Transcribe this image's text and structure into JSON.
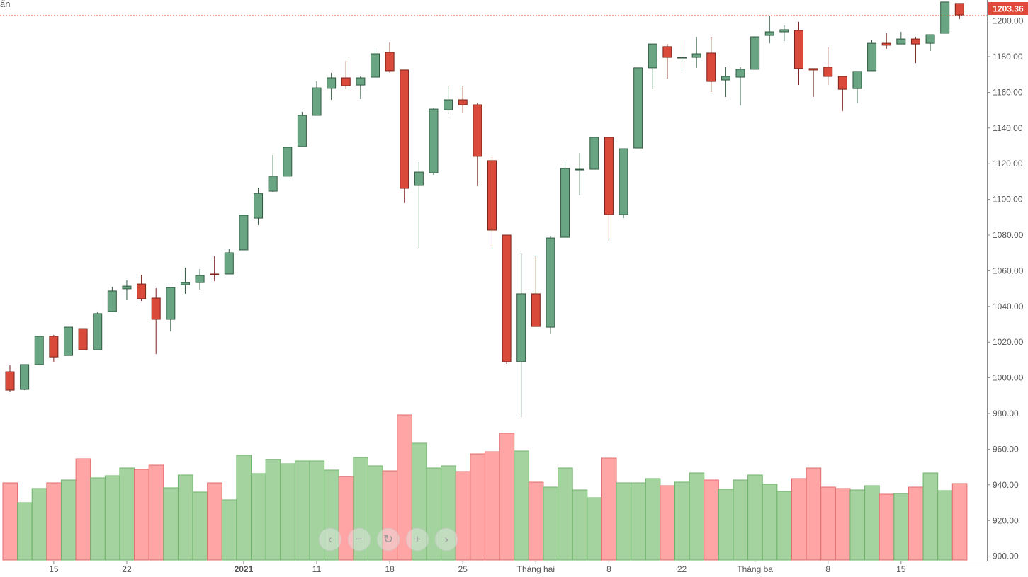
{
  "corner_label": "ẩn",
  "nav": {
    "prev": "‹",
    "zoom_out": "−",
    "reset": "↻",
    "zoom_in": "+",
    "next": "›"
  },
  "colors": {
    "up": "#6aa583",
    "up_border": "#2f5a40",
    "down": "#d94a3a",
    "down_border": "#7a2218",
    "vol_up": "#a5d3a0",
    "vol_up_border": "#6db36a",
    "vol_down": "#ffa5a5",
    "vol_down_border": "#e26e6e",
    "last_price": "#e0483a"
  },
  "chart_data": {
    "type": "candlestick",
    "ylim": [
      895,
      1212
    ],
    "y_ticks": [
      "900.00",
      "920.00",
      "940.00",
      "960.00",
      "980.00",
      "1000.00",
      "1020.00",
      "1040.00",
      "1060.00",
      "1080.00",
      "1100.00",
      "1120.00",
      "1140.00",
      "1160.00",
      "1180.00",
      "1200.00"
    ],
    "last_price": "1203.36",
    "x_ticks": [
      {
        "index": 3,
        "label": "15"
      },
      {
        "index": 8,
        "label": "22"
      },
      {
        "index": 16,
        "label": "2021",
        "bold": true
      },
      {
        "index": 21,
        "label": "11"
      },
      {
        "index": 26,
        "label": "18"
      },
      {
        "index": 31,
        "label": "25"
      },
      {
        "index": 36,
        "label": "Tháng hai"
      },
      {
        "index": 41,
        "label": "8"
      },
      {
        "index": 46,
        "label": "22"
      },
      {
        "index": 51,
        "label": "Tháng ba"
      },
      {
        "index": 56,
        "label": "8"
      },
      {
        "index": 61,
        "label": "15"
      }
    ],
    "candles": [
      [
        1003.4,
        1007.0,
        992.3,
        993.1
      ],
      [
        993.5,
        1007.4,
        993.1,
        1007.4
      ],
      [
        1007.4,
        1023.3,
        1007.4,
        1023.3
      ],
      [
        1023.3,
        1024.1,
        1009.0,
        1011.7
      ],
      [
        1012.5,
        1028.4,
        1012.5,
        1028.4
      ],
      [
        1027.6,
        1027.6,
        1015.7,
        1015.7
      ],
      [
        1015.7,
        1037.2,
        1015.7,
        1036.0
      ],
      [
        1037.2,
        1051.0,
        1037.2,
        1048.7
      ],
      [
        1049.9,
        1054.6,
        1043.5,
        1051.4
      ],
      [
        1052.6,
        1057.8,
        1043.1,
        1044.3
      ],
      [
        1044.7,
        1050.2,
        1013.3,
        1032.8
      ],
      [
        1032.8,
        1050.6,
        1026.0,
        1050.6
      ],
      [
        1052.2,
        1061.8,
        1047.1,
        1053.4
      ],
      [
        1053.4,
        1061.0,
        1049.5,
        1057.4
      ],
      [
        1058.2,
        1068.1,
        1054.2,
        1057.8
      ],
      [
        1058.2,
        1072.1,
        1058.2,
        1070.1
      ],
      [
        1071.7,
        1091.1,
        1071.7,
        1091.1
      ],
      [
        1089.5,
        1106.6,
        1085.6,
        1103.4
      ],
      [
        1104.6,
        1124.9,
        1104.2,
        1113.0
      ],
      [
        1113.0,
        1129.2,
        1113.0,
        1129.2
      ],
      [
        1129.6,
        1149.1,
        1129.6,
        1147.1
      ],
      [
        1147.1,
        1166.1,
        1147.1,
        1162.5
      ],
      [
        1162.2,
        1170.9,
        1155.8,
        1168.1
      ],
      [
        1168.1,
        1177.6,
        1161.7,
        1163.7
      ],
      [
        1164.1,
        1168.9,
        1156.2,
        1168.1
      ],
      [
        1168.5,
        1184.8,
        1168.5,
        1181.6
      ],
      [
        1182.4,
        1187.9,
        1170.9,
        1172.1
      ],
      [
        1172.5,
        1172.5,
        1097.9,
        1106.2
      ],
      [
        1107.8,
        1120.9,
        1072.5,
        1115.3
      ],
      [
        1114.9,
        1151.4,
        1113.7,
        1150.6
      ],
      [
        1150.2,
        1163.3,
        1147.9,
        1155.8
      ],
      [
        1155.8,
        1163.7,
        1148.3,
        1153.0
      ],
      [
        1153.0,
        1154.2,
        1107.4,
        1124.1
      ],
      [
        1121.7,
        1123.7,
        1072.9,
        1082.8
      ],
      [
        1080.0,
        1080.0,
        1007.8,
        1009.0
      ],
      [
        1009.0,
        1069.7,
        978.0,
        1047.1
      ],
      [
        1047.1,
        1068.1,
        1028.8,
        1028.8
      ],
      [
        1028.4,
        1079.2,
        1024.5,
        1078.4
      ],
      [
        1078.8,
        1120.9,
        1078.8,
        1117.3
      ],
      [
        1116.5,
        1126.0,
        1102.2,
        1116.9
      ],
      [
        1116.9,
        1134.8,
        1116.9,
        1134.8
      ],
      [
        1134.8,
        1134.8,
        1076.8,
        1091.5
      ],
      [
        1091.5,
        1128.4,
        1089.5,
        1128.4
      ],
      [
        1128.8,
        1173.7,
        1128.8,
        1173.7
      ],
      [
        1173.7,
        1187.1,
        1161.7,
        1187.1
      ],
      [
        1185.6,
        1187.1,
        1167.7,
        1179.6
      ],
      [
        1179.6,
        1189.5,
        1172.1,
        1179.6
      ],
      [
        1179.6,
        1191.1,
        1173.7,
        1181.6
      ],
      [
        1182.0,
        1191.1,
        1160.2,
        1166.1
      ],
      [
        1166.9,
        1174.1,
        1157.4,
        1168.9
      ],
      [
        1168.5,
        1174.1,
        1152.6,
        1172.9
      ],
      [
        1172.9,
        1191.1,
        1172.9,
        1191.1
      ],
      [
        1191.9,
        1203.0,
        1187.5,
        1193.9
      ],
      [
        1193.9,
        1197.5,
        1188.7,
        1195.1
      ],
      [
        1194.7,
        1199.5,
        1164.1,
        1173.3
      ],
      [
        1173.3,
        1173.3,
        1157.4,
        1172.5
      ],
      [
        1174.1,
        1185.2,
        1164.1,
        1168.9
      ],
      [
        1168.9,
        1168.9,
        1149.5,
        1161.7
      ],
      [
        1162.1,
        1171.7,
        1153.8,
        1171.7
      ],
      [
        1172.1,
        1189.5,
        1172.1,
        1187.5
      ],
      [
        1187.5,
        1193.1,
        1184.4,
        1186.4
      ],
      [
        1187.1,
        1193.9,
        1187.1,
        1189.9
      ],
      [
        1189.9,
        1191.1,
        1176.4,
        1187.1
      ],
      [
        1187.5,
        1192.3,
        1183.2,
        1192.3
      ],
      [
        1193.1,
        1210.6,
        1193.1,
        1210.6
      ],
      [
        1209.8,
        1209.8,
        1201.0,
        1203.4
      ]
    ],
    "candle_fields": [
      "open",
      "high",
      "low",
      "close"
    ],
    "volume": [
      109,
      81,
      101,
      109,
      113,
      143,
      116,
      119,
      130,
      128,
      134,
      102,
      120,
      96,
      109,
      85,
      148,
      122,
      142,
      136,
      140,
      140,
      127,
      118,
      145,
      133,
      126,
      205,
      165,
      130,
      133,
      125,
      150,
      153,
      179,
      154,
      110,
      103,
      130,
      99,
      88,
      144,
      109,
      109,
      115,
      105,
      110,
      123,
      113,
      100,
      113,
      120,
      107,
      97,
      115,
      130,
      103,
      101,
      99,
      105,
      93,
      94,
      103,
      123,
      98,
      108
    ]
  }
}
